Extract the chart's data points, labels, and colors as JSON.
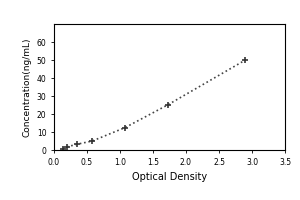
{
  "x_values": [
    0.133,
    0.2,
    0.35,
    0.58,
    1.08,
    1.72,
    2.9
  ],
  "y_values": [
    0.8,
    1.8,
    3.2,
    5.0,
    12.5,
    25.0,
    50.0
  ],
  "xlabel": "Optical Density",
  "ylabel": "Concentration(ng/mL)",
  "xlim": [
    0,
    3.5
  ],
  "ylim": [
    0,
    70
  ],
  "xticks": [
    0.0,
    0.5,
    1.0,
    1.5,
    2.0,
    2.5,
    3.0,
    3.5
  ],
  "yticks": [
    0,
    10,
    20,
    30,
    40,
    50,
    60
  ],
  "line_color": "#444444",
  "marker": "+",
  "marker_color": "#333333",
  "marker_size": 5,
  "marker_edge_width": 1.2,
  "line_style": "dotted",
  "line_width": 1.2,
  "background_color": "#ffffff",
  "axes_color": "#000000",
  "xlabel_fontsize": 7,
  "ylabel_fontsize": 6.5,
  "tick_fontsize": 5.5
}
